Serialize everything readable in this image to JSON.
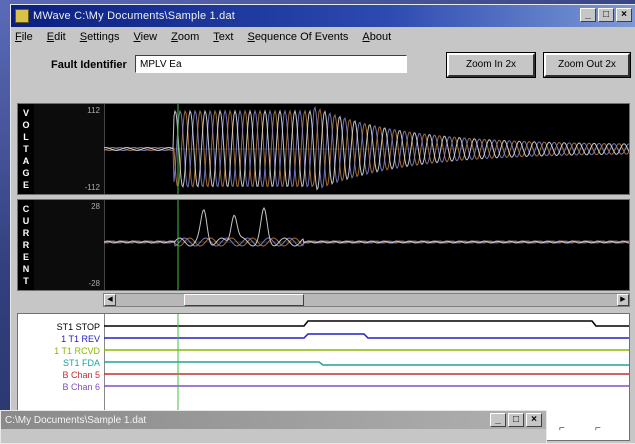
{
  "window": {
    "title": "MWave  C:\\My Documents\\Sample 1.dat",
    "controls": {
      "minimize": "_",
      "maximize": "□",
      "close": "×"
    }
  },
  "menu": [
    "File",
    "Edit",
    "Settings",
    "View",
    "Zoom",
    "Text",
    "Sequence Of Events",
    "About"
  ],
  "fault": {
    "label": "Fault Identifier",
    "value": "MPLV Ea"
  },
  "toolbar": {
    "zoom_in_label": "Zoom In 2x",
    "zoom_out_label": "Zoom Out 2x"
  },
  "voltage_panel": {
    "label_letters": [
      "V",
      "O",
      "L",
      "T",
      "A",
      "G",
      "E"
    ],
    "tick_top": "112",
    "tick_bottom": "-112"
  },
  "current_panel": {
    "label_letters": [
      "C",
      "U",
      "R",
      "R",
      "E",
      "N",
      "T"
    ],
    "tick_top": "28",
    "tick_bottom": "-28"
  },
  "digital_channels": [
    {
      "name": "ST1 STOP",
      "color": "#000000"
    },
    {
      "name": "1 T1 REV",
      "color": "#2020c0"
    },
    {
      "name": "1 T1 RCVD",
      "color": "#8ab800"
    },
    {
      "name": "ST1 FDA",
      "color": "#20a0a0"
    },
    {
      "name": "B Chan 5",
      "color": "#c03030"
    },
    {
      "name": "B Chan 6",
      "color": "#8050c0"
    }
  ],
  "subwindow": {
    "title": "C:\\My Documents\\Sample 1.dat"
  },
  "colors": {
    "title_bar": "#0a1f80",
    "phase_a": "#c08040",
    "phase_b": "#8a8ad8",
    "phase_c": "#e8e8e8",
    "cursor": "#40c040"
  }
}
